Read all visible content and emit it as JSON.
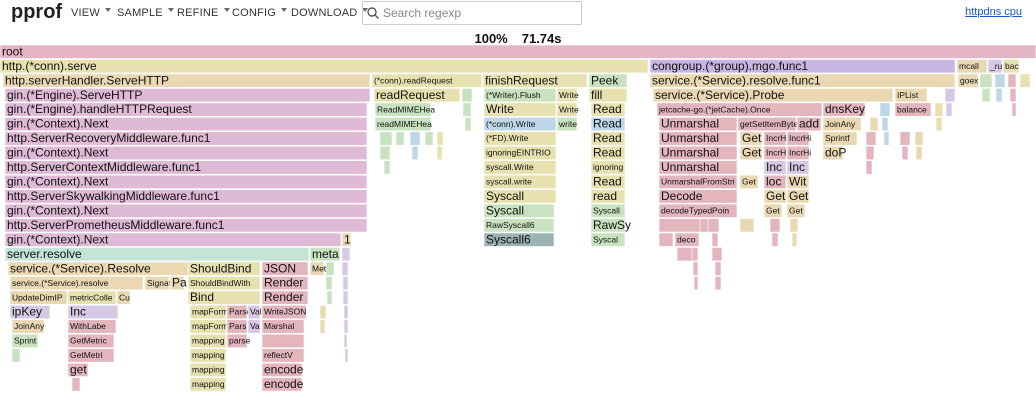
{
  "header": {
    "logo": "pprof",
    "menu": [
      "VIEW",
      "SAMPLE",
      "REFINE",
      "CONFIG",
      "DOWNLOAD"
    ],
    "search_placeholder": "Search regexp",
    "profile_link": "httpdns cpu"
  },
  "summary": {
    "percent": "100%",
    "time": "71.74s"
  },
  "flame": {
    "rows": [
      [
        "root"
      ],
      [
        "http.(*conn).serve",
        "congroup.(*group).mgo.func1",
        "mcall",
        "_ru",
        "bac"
      ],
      [
        "http.serverHandler.ServeHTTP",
        "(*conn).readRequest",
        "finishRequest",
        "Peek",
        "service.(*Service).resolve.func1",
        "goex"
      ],
      [
        "gin.(*Engine).ServeHTTP",
        "readRequest",
        "(*Writer).Flush",
        "Write",
        "fill",
        "service.(*Service).Probe",
        "IPList"
      ],
      [
        "gin.(*Engine).handleHTTPRequest",
        "ReadMIMEHea",
        "Write",
        "Write",
        "Read",
        "jetcache-go.(*jetCache).Once",
        "dnsKey",
        "balance"
      ],
      [
        "gin.(*Context).Next",
        "readMIMEHea",
        "(*conn).Write",
        "write",
        "Read",
        "Unmarshal",
        "getSetItemBytesOn",
        "add",
        "JoinAny"
      ],
      [
        "http.ServerRecoveryMiddleware.func1",
        "(*FD).Write",
        "Read",
        "Unmarshal",
        "Get",
        "IncrHi",
        "IncrHi",
        "Sprintf"
      ],
      [
        "gin.(*Context).Next",
        "ignoringEINTRIO",
        "Read",
        "Unmarshal",
        "Get",
        "IncrHi",
        "IncrHi",
        "doP"
      ],
      [
        "http.ServerContextMiddleware.func1",
        "syscall.Write",
        "ignoring",
        "Unmarshal",
        "Inc",
        "Inc"
      ],
      [
        "gin.(*Context).Next",
        "syscall.write",
        "Read",
        "UnmarshalFromStri",
        "Get",
        "loc",
        "Wit"
      ],
      [
        "http.ServerSkywalkingMiddleware.func1",
        "Syscall",
        "read",
        "Decode",
        "Get",
        "Get"
      ],
      [
        "gin.(*Context).Next",
        "Syscall",
        "Syscall",
        "decodeTypedPoin",
        "Get",
        "Get"
      ],
      [
        "http.ServerPrometheusMiddleware.func1",
        "RawSyscall6",
        "RawSy"
      ],
      [
        "gin.(*Context).Next",
        "1",
        "Syscall6",
        "Syscal",
        "deco"
      ],
      [
        "server.resolve",
        "meta"
      ],
      [
        "service.(*Service).Resolve",
        "ShouldBind",
        "JSON",
        "Met"
      ],
      [
        "service.(*Service).resolve",
        "Signat",
        "Pa",
        "ShouldBindWith",
        "Render"
      ],
      [
        "UpdateDimIP",
        "metricColle",
        "Cu",
        "Bind",
        "Render"
      ],
      [
        "ipKey",
        "Inc",
        "mapForm",
        "Parse",
        "Val",
        "WriteJSON"
      ],
      [
        "JoinAny",
        "WithLabe",
        "mapForm",
        "Pars",
        "Va",
        "Marshal"
      ],
      [
        "Sprint",
        "GetMetric",
        "mapping",
        "parse"
      ],
      [
        "GetMetri",
        "mapping",
        "reflectV"
      ],
      [
        "get",
        "mapping",
        "encode"
      ],
      [
        "mapping",
        "encode"
      ]
    ]
  }
}
